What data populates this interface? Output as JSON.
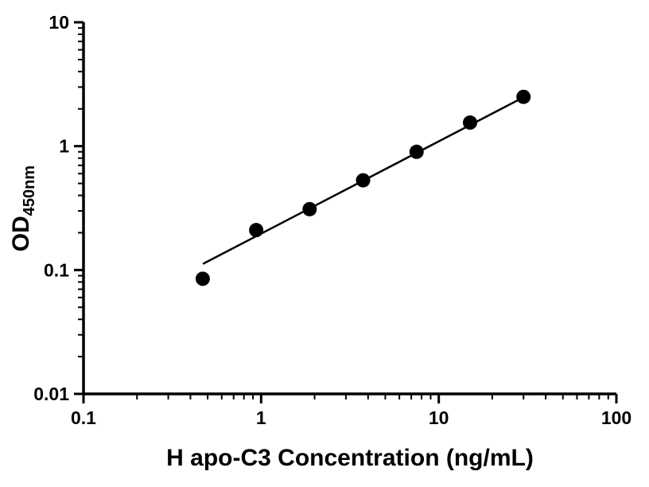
{
  "chart_data": {
    "type": "scatter",
    "title": "",
    "xlabel": "H apo-C3 Concentration (ng/mL)",
    "ylabel_main": "OD",
    "ylabel_sub": "450nm",
    "x_scale": "log",
    "y_scale": "log",
    "xlim": [
      0.1,
      100
    ],
    "ylim": [
      0.01,
      10
    ],
    "grid": false,
    "legend": "none",
    "marker_color": "#000000",
    "line_color": "#000000",
    "axis_color": "#000000",
    "x_ticks": [
      {
        "value": 0.1,
        "label": "0.1"
      },
      {
        "value": 1,
        "label": "1"
      },
      {
        "value": 10,
        "label": "10"
      },
      {
        "value": 100,
        "label": "100"
      }
    ],
    "y_ticks": [
      {
        "value": 0.01,
        "label": "0.01"
      },
      {
        "value": 0.1,
        "label": "0.1"
      },
      {
        "value": 1,
        "label": "1"
      },
      {
        "value": 10,
        "label": "10"
      }
    ],
    "points": [
      {
        "x": 0.469,
        "y": 0.085
      },
      {
        "x": 0.938,
        "y": 0.21
      },
      {
        "x": 1.875,
        "y": 0.31
      },
      {
        "x": 3.75,
        "y": 0.53
      },
      {
        "x": 7.5,
        "y": 0.9
      },
      {
        "x": 15,
        "y": 1.55
      },
      {
        "x": 30,
        "y": 2.5
      }
    ],
    "fit_line": [
      {
        "x": 0.47,
        "y": 0.112
      },
      {
        "x": 30,
        "y": 2.48
      }
    ]
  }
}
